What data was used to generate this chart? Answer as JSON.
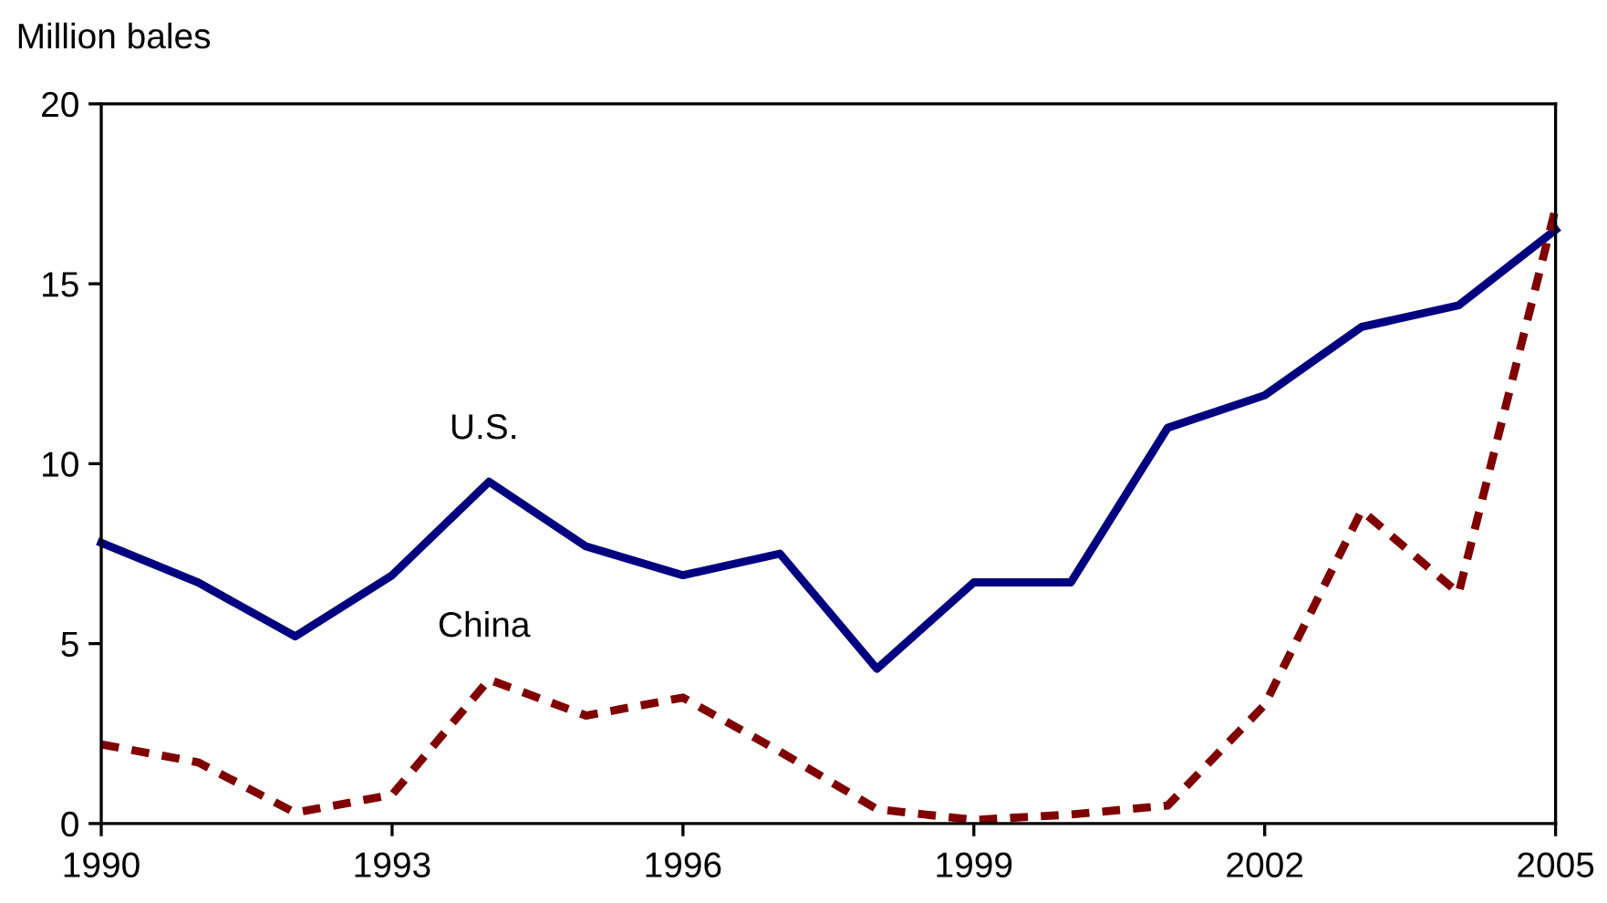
{
  "chart_data": {
    "type": "line",
    "ylabel": "Million bales",
    "x": [
      1990,
      1991,
      1992,
      1993,
      1994,
      1995,
      1996,
      1997,
      1998,
      1999,
      2000,
      2001,
      2002,
      2003,
      2004,
      2005
    ],
    "series": [
      {
        "name": "U.S.",
        "color": "#000080",
        "line_style": "solid",
        "values": [
          7.8,
          6.7,
          5.2,
          6.9,
          9.5,
          7.7,
          6.9,
          7.5,
          4.3,
          6.7,
          6.7,
          11.0,
          11.9,
          13.8,
          14.4,
          16.5
        ]
      },
      {
        "name": "China",
        "color": "#800000",
        "line_style": "dashed",
        "values": [
          2.2,
          1.7,
          0.3,
          0.8,
          4.0,
          3.0,
          3.5,
          2.0,
          0.4,
          0.1,
          0.25,
          0.5,
          3.3,
          8.7,
          6.4,
          17.1
        ]
      }
    ],
    "xlim": [
      1990,
      2005
    ],
    "xticks": [
      1990,
      1993,
      1996,
      1999,
      2002,
      2005
    ],
    "ylim": [
      0,
      20
    ],
    "yticks": [
      0,
      5,
      10,
      15,
      20
    ],
    "grid": false,
    "legend": false,
    "marker": "none"
  }
}
